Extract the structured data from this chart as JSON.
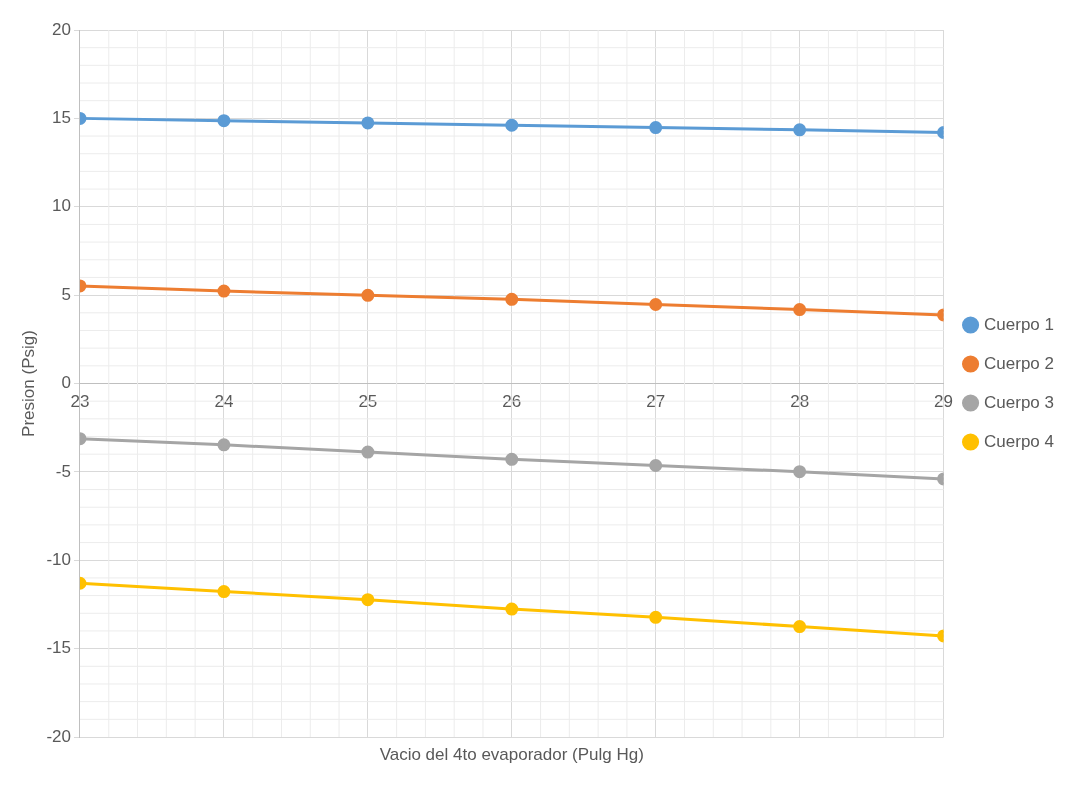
{
  "chart_data": {
    "type": "line",
    "xlabel": "Vacio del 4to evaporador (Pulg Hg)",
    "ylabel": "Presion (Psig)",
    "x": [
      23,
      24,
      25,
      26,
      27,
      28,
      29
    ],
    "series": [
      {
        "name": "Cuerpo 1",
        "color": "#5b9bd5",
        "values": [
          15.0,
          14.87,
          14.74,
          14.61,
          14.48,
          14.35,
          14.2
        ]
      },
      {
        "name": "Cuerpo 2",
        "color": "#ed7d31",
        "values": [
          5.52,
          5.23,
          4.99,
          4.76,
          4.47,
          4.18,
          3.88
        ]
      },
      {
        "name": "Cuerpo 3",
        "color": "#a5a5a5",
        "values": [
          -3.12,
          -3.47,
          -3.88,
          -4.29,
          -4.64,
          -4.99,
          -5.4
        ]
      },
      {
        "name": "Cuerpo 4",
        "color": "#ffc000",
        "values": [
          -11.3,
          -11.77,
          -12.23,
          -12.76,
          -13.23,
          -13.75,
          -14.28
        ]
      }
    ],
    "xlim": [
      23,
      29
    ],
    "xticks": [
      23,
      24,
      25,
      26,
      27,
      28,
      29
    ],
    "ylim": [
      -20,
      20
    ],
    "yticks": [
      -20,
      -15,
      -10,
      -5,
      0,
      5,
      10,
      15,
      20
    ],
    "grid": true,
    "legend": "right",
    "marker": "circle",
    "line_style": "solid"
  }
}
